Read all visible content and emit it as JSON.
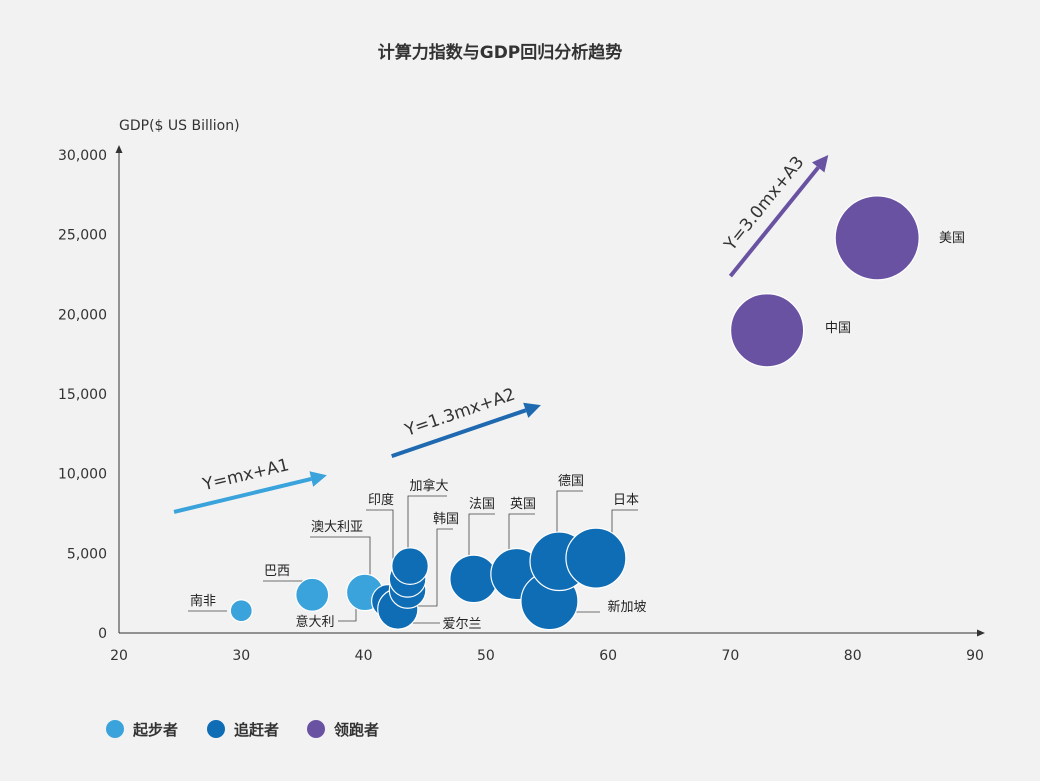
{
  "chart_data": {
    "type": "scatter",
    "title": "计算力指数与GDP回归分析趋势",
    "xlabel": "",
    "ylabel": "GDP($ US Billion)",
    "xlim": [
      20,
      90
    ],
    "ylim": [
      0,
      30000
    ],
    "x_ticks": [
      20,
      30,
      40,
      50,
      60,
      70,
      80,
      90
    ],
    "y_ticks": [
      0,
      5000,
      10000,
      15000,
      20000,
      25000,
      30000
    ],
    "y_tick_labels": [
      "0",
      "5,000",
      "10,000",
      "15,000",
      "20,000",
      "25,000",
      "30,000"
    ],
    "grid": false,
    "legend_position": "bottom-left",
    "colors": {
      "starter": "#3aa3dc",
      "follower": "#0f6db5",
      "leader": "#6a52a3"
    },
    "series": [
      {
        "name": "起步者",
        "key": "starter",
        "points": [
          {
            "label": "南非",
            "x": 30,
            "y": 1400,
            "size": 0.3
          },
          {
            "label": "巴西",
            "x": 35.8,
            "y": 2400,
            "size": 0.45
          },
          {
            "label": "澳大利亚",
            "x": 40.1,
            "y": 2550,
            "size": 0.5
          }
        ]
      },
      {
        "name": "追赶者",
        "key": "follower",
        "points": [
          {
            "label": "意大利",
            "x": 42,
            "y": 2000,
            "size": 0.45
          },
          {
            "label": "爱尔兰",
            "x": 42.8,
            "y": 1500,
            "size": 0.55
          },
          {
            "label": "印度",
            "x": 43.6,
            "y": 2700,
            "size": 0.5
          },
          {
            "label": "韩国",
            "x": 43.6,
            "y": 3400,
            "size": 0.5
          },
          {
            "label": "加拿大",
            "x": 43.8,
            "y": 4200,
            "size": 0.5
          },
          {
            "label": "法国",
            "x": 49,
            "y": 3400,
            "size": 0.65
          },
          {
            "label": "英国",
            "x": 52.5,
            "y": 3700,
            "size": 0.7
          },
          {
            "label": "新加坡",
            "x": 55.2,
            "y": 2000,
            "size": 0.78
          },
          {
            "label": "德国",
            "x": 56,
            "y": 4500,
            "size": 0.8
          },
          {
            "label": "日本",
            "x": 59,
            "y": 4700,
            "size": 0.82
          }
        ]
      },
      {
        "name": "领跑者",
        "key": "leader",
        "points": [
          {
            "label": "中国",
            "x": 73,
            "y": 19000,
            "size": 1.0
          },
          {
            "label": "美国",
            "x": 82,
            "y": 24800,
            "size": 1.15
          }
        ]
      }
    ],
    "trend_arrows": [
      {
        "label": "Y=mx+A1",
        "color": "#3aa3dc",
        "from": [
          24.5,
          7600
        ],
        "to": [
          37,
          9900
        ]
      },
      {
        "label": "Y=1.3mx+A2",
        "color": "#1f69b0",
        "from": [
          42.3,
          11100
        ],
        "to": [
          54.5,
          14300
        ]
      },
      {
        "label": "Y=3.0mx+A3",
        "color": "#6a52a3",
        "from": [
          70,
          22400
        ],
        "to": [
          78,
          30000
        ]
      }
    ]
  }
}
